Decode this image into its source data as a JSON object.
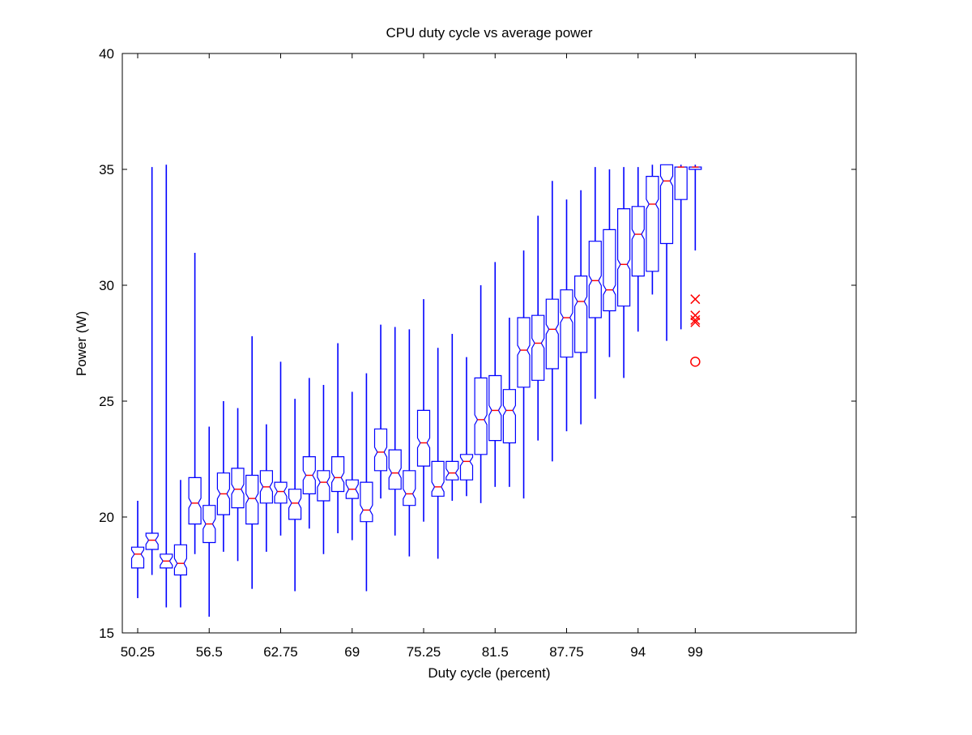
{
  "chart_data": {
    "type": "boxplot",
    "title": "CPU duty cycle vs average power",
    "xlabel": "Duty cycle (percent)",
    "ylabel": "Power (W)",
    "ylim": [
      15,
      40
    ],
    "yticks": [
      15,
      20,
      25,
      30,
      35,
      40
    ],
    "xtick_labels": [
      "50.25",
      "56.5",
      "62.75",
      "69",
      "75.25",
      "81.5",
      "87.75",
      "94",
      "99"
    ],
    "xtick_boxes": [
      0,
      5,
      10,
      15,
      20,
      25,
      30,
      35,
      39
    ],
    "grid": false,
    "notched": true,
    "colors": {
      "box": "#0000ff",
      "median": "#ff0000",
      "outlier": "#ff0000",
      "axis": "#000000"
    },
    "boxes": [
      {
        "min": 16.5,
        "q1": 17.8,
        "median": 18.4,
        "q3": 18.7,
        "max": 20.7
      },
      {
        "min": 17.5,
        "q1": 18.6,
        "median": 19.0,
        "q3": 19.3,
        "max": 35.1
      },
      {
        "min": 16.1,
        "q1": 17.8,
        "median": 18.1,
        "q3": 18.4,
        "max": 35.2
      },
      {
        "min": 16.1,
        "q1": 17.5,
        "median": 18.0,
        "q3": 18.8,
        "max": 21.6
      },
      {
        "min": 18.4,
        "q1": 19.7,
        "median": 20.6,
        "q3": 21.7,
        "max": 31.4
      },
      {
        "min": 15.7,
        "q1": 18.9,
        "median": 19.7,
        "q3": 20.5,
        "max": 23.9
      },
      {
        "min": 18.5,
        "q1": 20.1,
        "median": 21.0,
        "q3": 21.9,
        "max": 25.0
      },
      {
        "min": 18.1,
        "q1": 20.4,
        "median": 21.2,
        "q3": 22.1,
        "max": 24.7
      },
      {
        "min": 16.9,
        "q1": 19.7,
        "median": 20.8,
        "q3": 21.8,
        "max": 27.8
      },
      {
        "min": 18.5,
        "q1": 20.6,
        "median": 21.3,
        "q3": 22.0,
        "max": 24.0
      },
      {
        "min": 19.2,
        "q1": 20.6,
        "median": 21.1,
        "q3": 21.5,
        "max": 26.7
      },
      {
        "min": 16.8,
        "q1": 19.9,
        "median": 20.6,
        "q3": 21.2,
        "max": 25.1
      },
      {
        "min": 19.5,
        "q1": 21.0,
        "median": 21.8,
        "q3": 22.6,
        "max": 26.0
      },
      {
        "min": 18.4,
        "q1": 20.7,
        "median": 21.5,
        "q3": 22.0,
        "max": 25.7
      },
      {
        "min": 19.3,
        "q1": 21.1,
        "median": 21.7,
        "q3": 22.6,
        "max": 27.5
      },
      {
        "min": 19.0,
        "q1": 20.8,
        "median": 21.2,
        "q3": 21.6,
        "max": 25.4
      },
      {
        "min": 16.8,
        "q1": 19.8,
        "median": 20.3,
        "q3": 21.5,
        "max": 26.2
      },
      {
        "min": 20.8,
        "q1": 22.0,
        "median": 22.8,
        "q3": 23.8,
        "max": 28.3
      },
      {
        "min": 19.2,
        "q1": 21.2,
        "median": 21.9,
        "q3": 22.9,
        "max": 28.2
      },
      {
        "min": 18.3,
        "q1": 20.5,
        "median": 21.0,
        "q3": 22.0,
        "max": 28.1
      },
      {
        "min": 19.8,
        "q1": 22.2,
        "median": 23.2,
        "q3": 24.6,
        "max": 29.4
      },
      {
        "min": 18.2,
        "q1": 20.9,
        "median": 21.3,
        "q3": 22.4,
        "max": 27.3
      },
      {
        "min": 20.7,
        "q1": 21.6,
        "median": 21.9,
        "q3": 22.4,
        "max": 27.9
      },
      {
        "min": 20.9,
        "q1": 21.6,
        "median": 22.4,
        "q3": 22.7,
        "max": 26.9
      },
      {
        "min": 20.6,
        "q1": 22.7,
        "median": 24.2,
        "q3": 26.0,
        "max": 30.0
      },
      {
        "min": 21.3,
        "q1": 23.3,
        "median": 24.6,
        "q3": 26.1,
        "max": 31.0
      },
      {
        "min": 21.3,
        "q1": 23.2,
        "median": 24.6,
        "q3": 25.5,
        "max": 28.6
      },
      {
        "min": 20.8,
        "q1": 25.6,
        "median": 27.2,
        "q3": 28.6,
        "max": 31.5
      },
      {
        "min": 23.3,
        "q1": 25.9,
        "median": 27.5,
        "q3": 28.7,
        "max": 33.0
      },
      {
        "min": 22.4,
        "q1": 26.4,
        "median": 28.1,
        "q3": 29.4,
        "max": 34.5
      },
      {
        "min": 23.7,
        "q1": 26.9,
        "median": 28.6,
        "q3": 29.8,
        "max": 33.7
      },
      {
        "min": 24.0,
        "q1": 27.1,
        "median": 29.3,
        "q3": 30.4,
        "max": 34.1
      },
      {
        "min": 25.1,
        "q1": 28.6,
        "median": 30.2,
        "q3": 31.9,
        "max": 35.1
      },
      {
        "min": 26.9,
        "q1": 28.9,
        "median": 29.8,
        "q3": 32.4,
        "max": 35.0
      },
      {
        "min": 26.0,
        "q1": 29.1,
        "median": 30.9,
        "q3": 33.3,
        "max": 35.1
      },
      {
        "min": 28.0,
        "q1": 30.4,
        "median": 32.2,
        "q3": 33.4,
        "max": 35.1
      },
      {
        "min": 29.6,
        "q1": 30.6,
        "median": 33.5,
        "q3": 34.7,
        "max": 35.2
      },
      {
        "min": 27.6,
        "q1": 31.8,
        "median": 34.5,
        "q3": 35.2,
        "max": 35.2
      },
      {
        "min": 28.1,
        "q1": 33.7,
        "median": 35.1,
        "q3": 35.1,
        "max": 35.2
      },
      {
        "min": 31.5,
        "q1": 35.0,
        "median": 35.1,
        "q3": 35.1,
        "max": 35.2,
        "outliers": [
          29.4,
          28.7,
          28.5,
          28.4
        ],
        "far_outliers": [
          26.7
        ]
      }
    ]
  }
}
